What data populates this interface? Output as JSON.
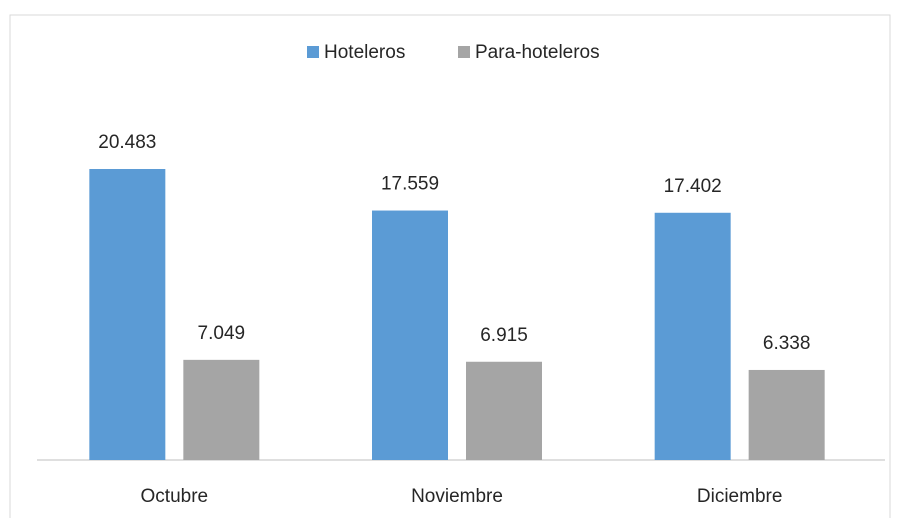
{
  "chart_data": {
    "type": "bar",
    "categories": [
      "Octubre",
      "Noviembre",
      "Diciembre"
    ],
    "series": [
      {
        "name": "Hoteleros",
        "color": "#5b9bd5",
        "values": [
          20.483,
          17.559,
          17.402
        ]
      },
      {
        "name": "Para-hoteleros",
        "color": "#a5a5a5",
        "values": [
          7.049,
          6.915,
          6.338
        ]
      }
    ],
    "legend": "top"
  }
}
